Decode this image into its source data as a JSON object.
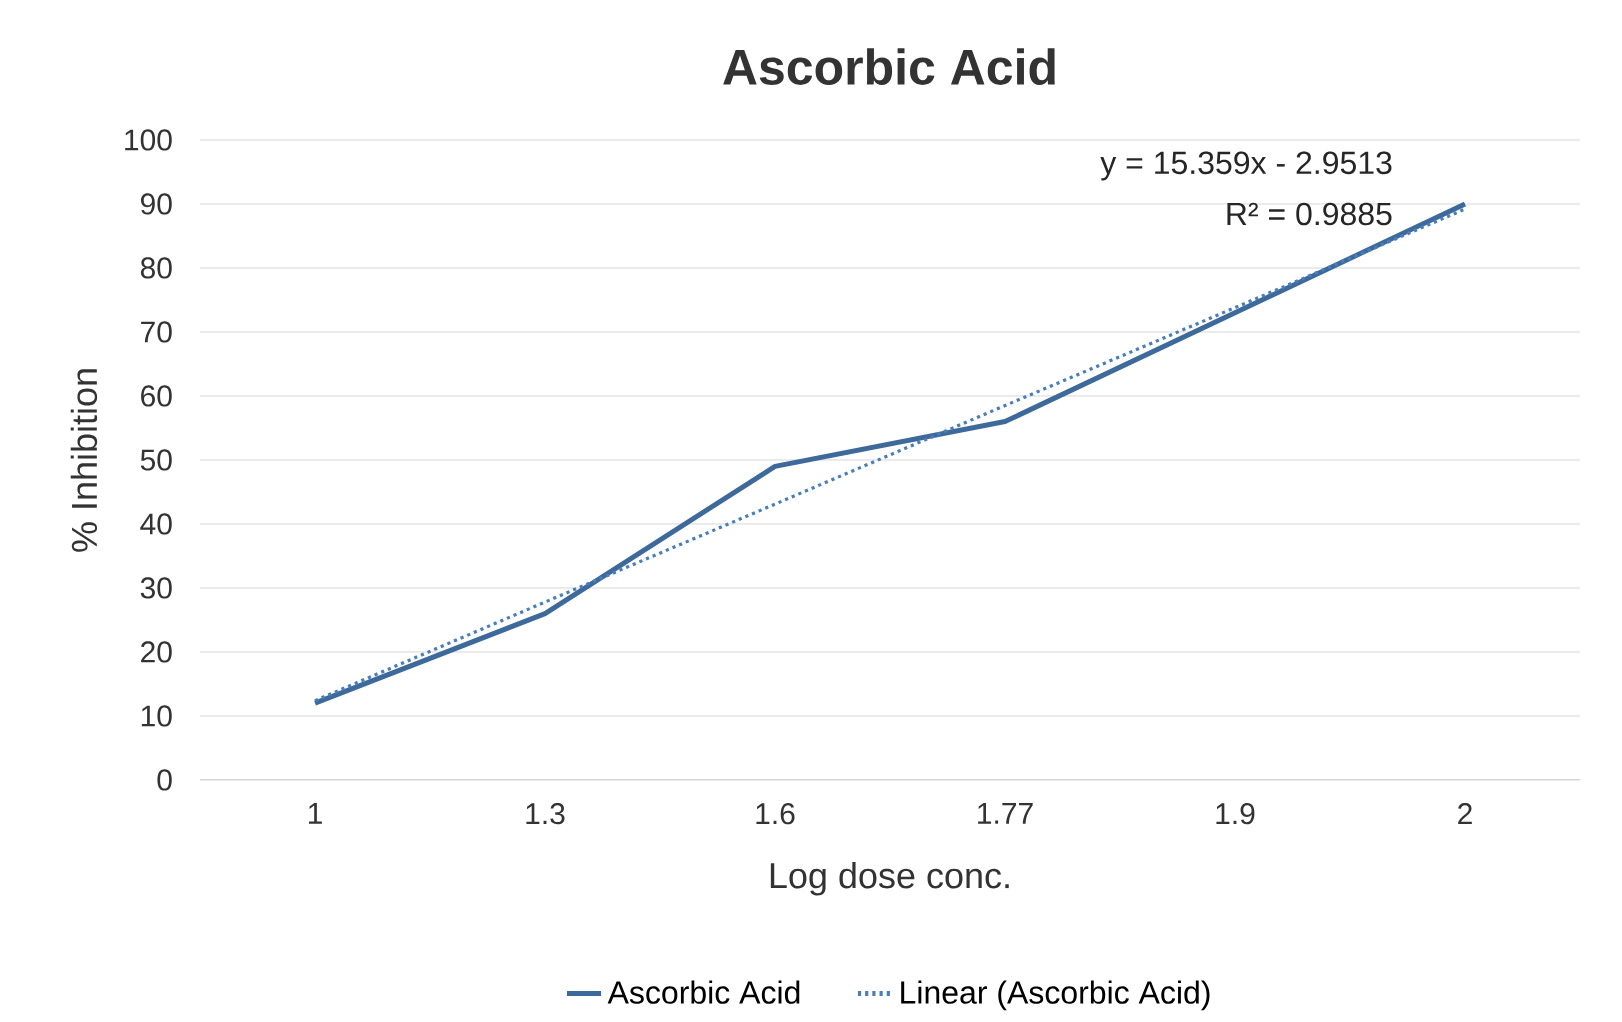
{
  "chart_data": {
    "type": "line",
    "title": "Ascorbic Acid",
    "xlabel": "Log dose conc.",
    "ylabel": "% Inhibition",
    "categories": [
      "1",
      "1.3",
      "1.6",
      "1.77",
      "1.9",
      "2"
    ],
    "series": [
      {
        "name": "Ascorbic Acid",
        "color": "#3d6a9b",
        "values": [
          12,
          26,
          49,
          56,
          73,
          90
        ],
        "line_style": "solid"
      },
      {
        "name": "Linear (Ascorbic Acid)",
        "color": "#4a7ebb",
        "values": [
          12.4,
          27.8,
          43.1,
          58.5,
          73.8,
          89.2
        ],
        "line_style": "dotted"
      }
    ],
    "ylim": [
      0,
      100
    ],
    "yticks": [
      0,
      10,
      20,
      30,
      40,
      50,
      60,
      70,
      80,
      90,
      100
    ],
    "grid": "y",
    "legend": "bottom",
    "marker": "none",
    "annotations": [
      "y = 15.359x - 2.9513",
      "R² = 0.9885"
    ]
  }
}
